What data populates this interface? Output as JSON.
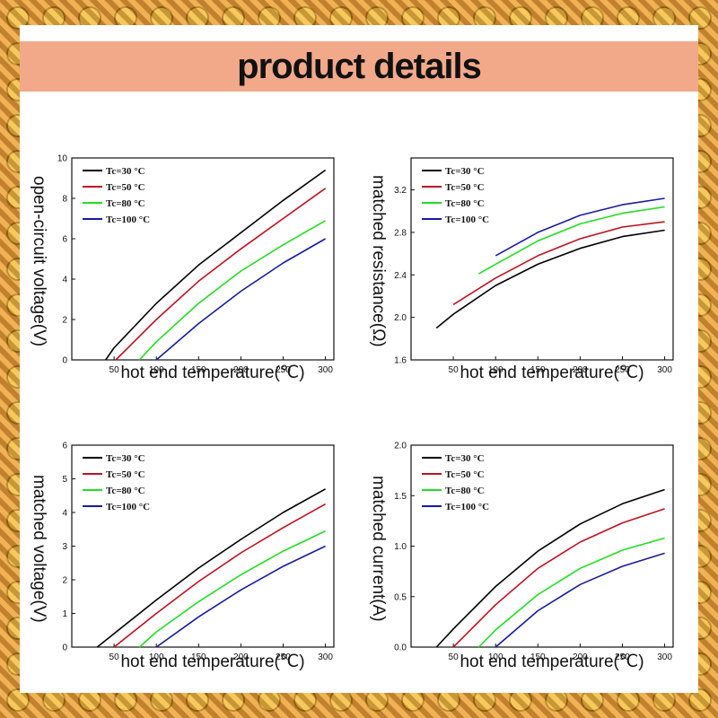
{
  "header": {
    "title": "product details"
  },
  "chart_data": [
    {
      "type": "line",
      "ylabel": "open-circuit voltage(V)",
      "xlabel": "hot end temperature(℃)",
      "xlim": [
        0,
        310
      ],
      "ylim": [
        0,
        10
      ],
      "xticks": [
        50,
        100,
        150,
        200,
        250,
        300
      ],
      "yticks": [
        0,
        2,
        4,
        6,
        8,
        10
      ],
      "yticklabels": [
        "0",
        "2",
        "4",
        "6",
        "8",
        "10"
      ],
      "legend_position": "top-left",
      "series": [
        {
          "name": "Tc=30 °C",
          "color": "#000000",
          "x": [
            40,
            50,
            100,
            150,
            200,
            250,
            300
          ],
          "y": [
            0.0,
            0.6,
            2.8,
            4.7,
            6.3,
            7.9,
            9.4
          ]
        },
        {
          "name": "Tc=50 °C",
          "color": "#c01020",
          "x": [
            52,
            100,
            150,
            200,
            250,
            300
          ],
          "y": [
            0.0,
            2.0,
            3.9,
            5.5,
            7.0,
            8.5
          ]
        },
        {
          "name": "Tc=80 °C",
          "color": "#22dd22",
          "x": [
            80,
            100,
            150,
            200,
            250,
            300
          ],
          "y": [
            0.0,
            0.9,
            2.8,
            4.4,
            5.7,
            6.9
          ]
        },
        {
          "name": "Tc=100 °C",
          "color": "#1a1aa0",
          "x": [
            100,
            150,
            200,
            250,
            300
          ],
          "y": [
            0.0,
            1.8,
            3.4,
            4.8,
            6.0
          ]
        }
      ]
    },
    {
      "type": "line",
      "ylabel": "matched resistance(Ω)",
      "xlabel": "hot end temperature(℃)",
      "xlim": [
        0,
        310
      ],
      "ylim": [
        1.6,
        3.5
      ],
      "xticks": [
        50,
        100,
        150,
        200,
        250,
        300
      ],
      "yticks": [
        1.6,
        2.0,
        2.4,
        2.8,
        3.2
      ],
      "yticklabels": [
        "1.6",
        "2.0",
        "2.4",
        "2.8",
        "3.2"
      ],
      "legend_position": "top-left",
      "series": [
        {
          "name": "Tc=30 °C",
          "color": "#000000",
          "x": [
            30,
            50,
            100,
            150,
            200,
            250,
            300
          ],
          "y": [
            1.9,
            2.03,
            2.3,
            2.5,
            2.65,
            2.76,
            2.82
          ]
        },
        {
          "name": "Tc=50 °C",
          "color": "#c01020",
          "x": [
            50,
            100,
            150,
            200,
            250,
            300
          ],
          "y": [
            2.12,
            2.37,
            2.58,
            2.74,
            2.85,
            2.9
          ]
        },
        {
          "name": "Tc=80 °C",
          "color": "#22dd22",
          "x": [
            80,
            100,
            150,
            200,
            250,
            300
          ],
          "y": [
            2.41,
            2.5,
            2.72,
            2.88,
            2.98,
            3.04
          ]
        },
        {
          "name": "Tc=100 °C",
          "color": "#1a1aa0",
          "x": [
            100,
            150,
            200,
            250,
            300
          ],
          "y": [
            2.58,
            2.8,
            2.96,
            3.06,
            3.12
          ]
        }
      ]
    },
    {
      "type": "line",
      "ylabel": "matched voltage(V)",
      "xlabel": "hot end temperature(℃)",
      "xlim": [
        0,
        310
      ],
      "ylim": [
        0,
        6
      ],
      "xticks": [
        50,
        100,
        150,
        200,
        250,
        300
      ],
      "yticks": [
        0,
        1,
        2,
        3,
        4,
        5,
        6
      ],
      "yticklabels": [
        "0",
        "1",
        "2",
        "3",
        "4",
        "5",
        "6"
      ],
      "legend_position": "top-left",
      "series": [
        {
          "name": "Tc=30 °C",
          "color": "#000000",
          "x": [
            30,
            50,
            100,
            150,
            200,
            250,
            300
          ],
          "y": [
            0.0,
            0.4,
            1.4,
            2.35,
            3.2,
            4.0,
            4.7
          ]
        },
        {
          "name": "Tc=50 °C",
          "color": "#c01020",
          "x": [
            50,
            100,
            150,
            200,
            250,
            300
          ],
          "y": [
            0.0,
            1.0,
            1.95,
            2.8,
            3.55,
            4.25
          ]
        },
        {
          "name": "Tc=80 °C",
          "color": "#22dd22",
          "x": [
            80,
            100,
            150,
            200,
            250,
            300
          ],
          "y": [
            0.0,
            0.45,
            1.35,
            2.15,
            2.85,
            3.45
          ]
        },
        {
          "name": "Tc=100 °C",
          "color": "#1a1aa0",
          "x": [
            100,
            150,
            200,
            250,
            300
          ],
          "y": [
            0.0,
            0.9,
            1.7,
            2.4,
            3.0
          ]
        }
      ]
    },
    {
      "type": "line",
      "ylabel": "matched current(A)",
      "xlabel": "hot end temperature(℃)",
      "xlim": [
        0,
        310
      ],
      "ylim": [
        0,
        2.0
      ],
      "xticks": [
        50,
        100,
        150,
        200,
        250,
        300
      ],
      "yticks": [
        0,
        0.5,
        1.0,
        1.5,
        2.0
      ],
      "yticklabels": [
        "0.0",
        "0.5",
        "1.0",
        "1.5",
        "2.0"
      ],
      "legend_position": "top-left",
      "series": [
        {
          "name": "Tc=30 °C",
          "color": "#000000",
          "x": [
            30,
            50,
            100,
            150,
            200,
            250,
            300
          ],
          "y": [
            0.0,
            0.18,
            0.6,
            0.95,
            1.22,
            1.42,
            1.56
          ]
        },
        {
          "name": "Tc=50 °C",
          "color": "#c01020",
          "x": [
            50,
            100,
            150,
            200,
            250,
            300
          ],
          "y": [
            0.0,
            0.42,
            0.78,
            1.04,
            1.23,
            1.37
          ]
        },
        {
          "name": "Tc=80 °C",
          "color": "#22dd22",
          "x": [
            80,
            100,
            150,
            200,
            250,
            300
          ],
          "y": [
            0.0,
            0.17,
            0.52,
            0.78,
            0.96,
            1.08
          ]
        },
        {
          "name": "Tc=100 °C",
          "color": "#1a1aa0",
          "x": [
            100,
            150,
            200,
            250,
            300
          ],
          "y": [
            0.0,
            0.36,
            0.62,
            0.8,
            0.93
          ]
        }
      ]
    }
  ]
}
